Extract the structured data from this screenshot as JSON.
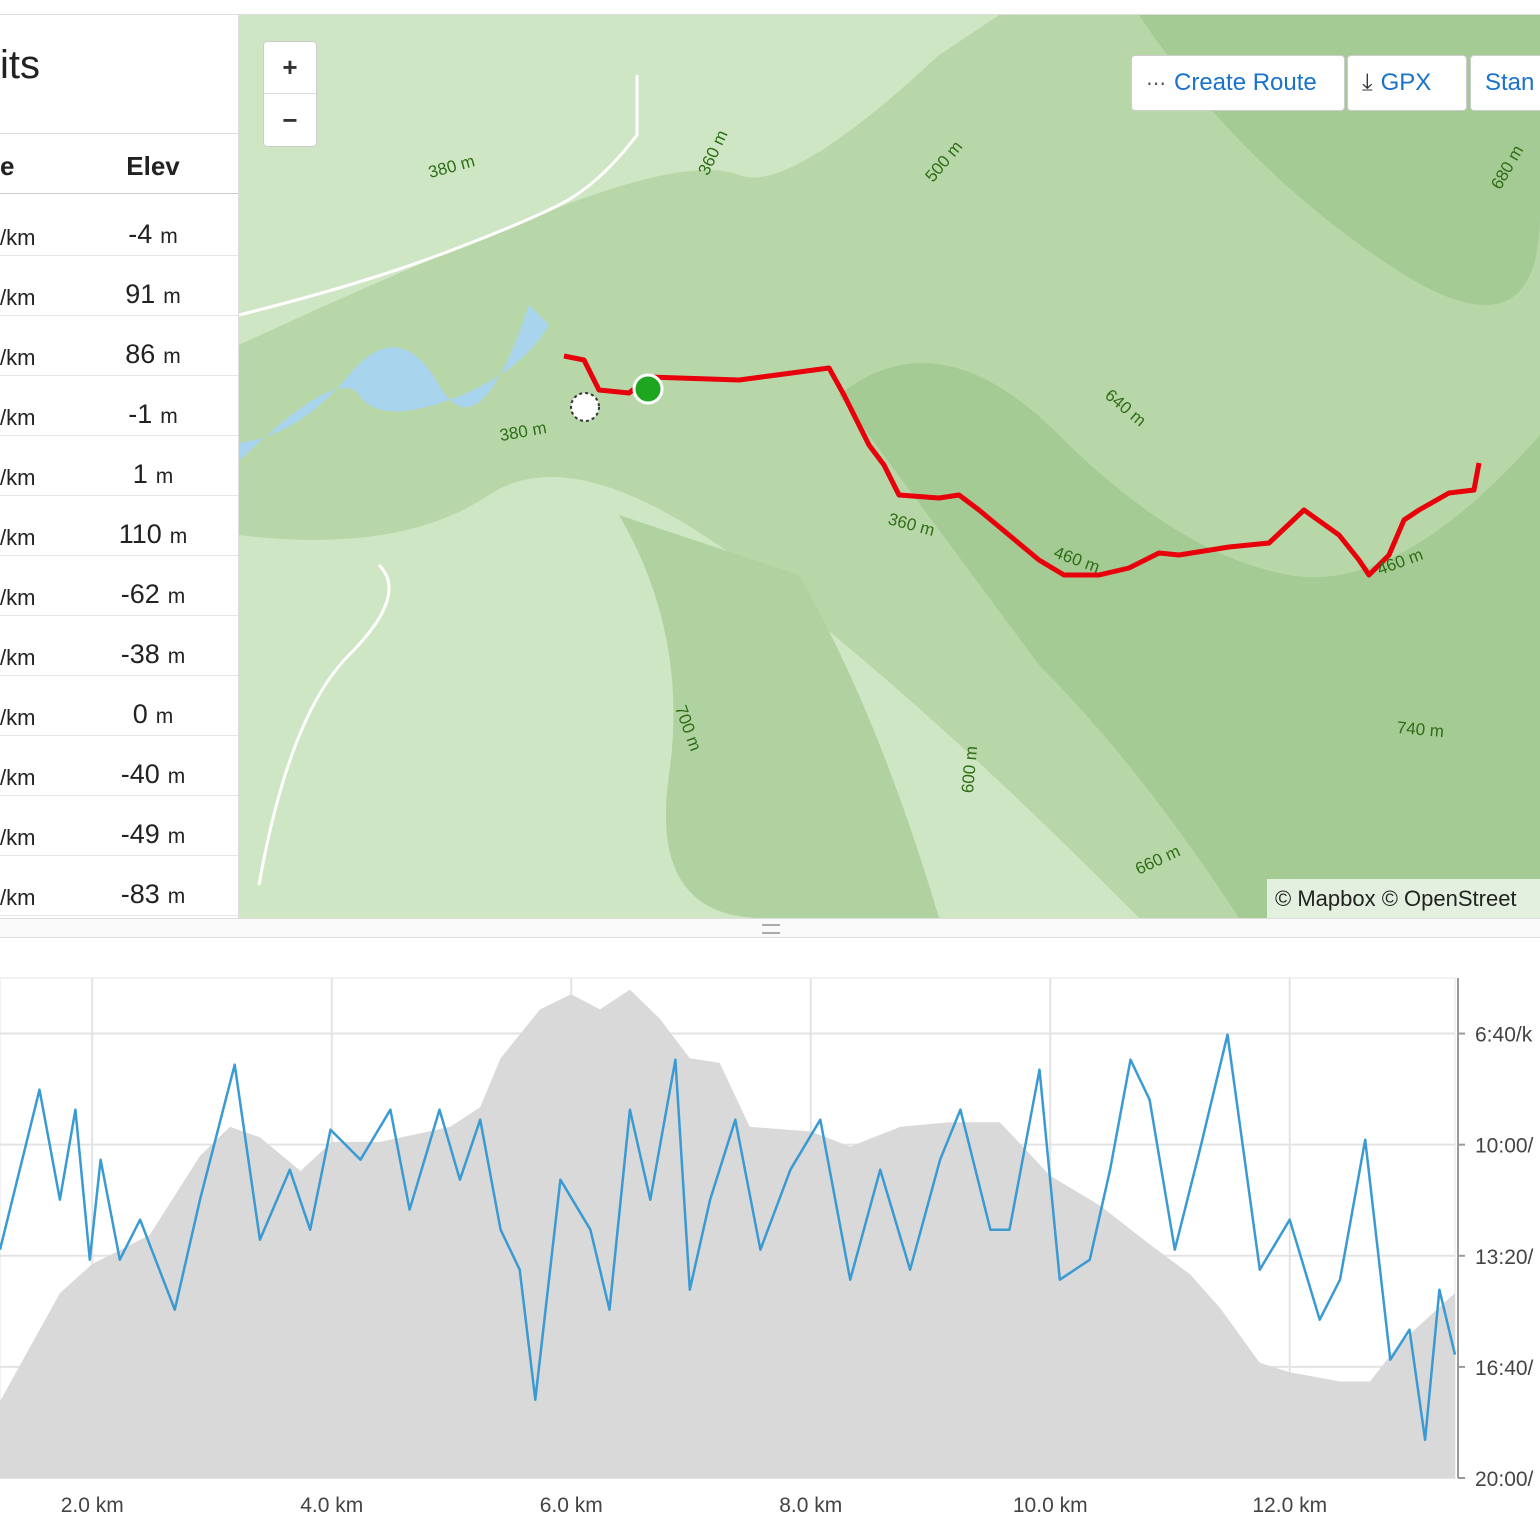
{
  "splits": {
    "title": "its",
    "headers": [
      "e",
      "Elev"
    ],
    "rows": [
      [
        "/km",
        "-4",
        "m"
      ],
      [
        "/km",
        "91",
        "m"
      ],
      [
        "/km",
        "86",
        "m"
      ],
      [
        "/km",
        "-1",
        "m"
      ],
      [
        "/km",
        "1",
        "m"
      ],
      [
        "/km",
        "110",
        "m"
      ],
      [
        "/km",
        "-62",
        "m"
      ],
      [
        "/km",
        "-38",
        "m"
      ],
      [
        "/km",
        "0",
        "m"
      ],
      [
        "/km",
        "-40",
        "m"
      ],
      [
        "/km",
        "-49",
        "m"
      ],
      [
        "/km",
        "-83",
        "m"
      ]
    ]
  },
  "map": {
    "controls": [
      "+",
      "−"
    ],
    "buttons": [
      "Create Route",
      "GPX",
      "Stan"
    ],
    "contour_labels": [
      "380 m",
      "360 m",
      "500 m",
      "680 m",
      "640 m",
      "380 m",
      "360 m",
      "460 m",
      "460 m",
      "700 m",
      "600 m",
      "740 m",
      "660 m"
    ],
    "attribution": "© Mapbox © OpenStreet"
  },
  "chart_data": {
    "type": "line",
    "xlim": [
      1.23,
      13.38
    ],
    "xticks": [
      {
        "value": 2,
        "label": "2.0 km"
      },
      {
        "value": 4,
        "label": "4.0 km"
      },
      {
        "value": 6,
        "label": "6.0 km"
      },
      {
        "value": 8,
        "label": "8.0 km"
      },
      {
        "value": 10,
        "label": "10.0 km"
      },
      {
        "value": 12,
        "label": "12.0 km"
      }
    ],
    "ylim": [
      340,
      770
    ],
    "y2lim": [
      1200,
      300
    ],
    "y2ticks": [
      {
        "value": 400,
        "label": "6:40/k"
      },
      {
        "value": 600,
        "label": "10:00/"
      },
      {
        "value": 800,
        "label": "13:20/"
      },
      {
        "value": 1000,
        "label": "16:40/"
      },
      {
        "value": 1200,
        "label": "20:00/"
      }
    ],
    "grid": true,
    "series": [
      {
        "color": "#d9d9d9",
        "fill": true,
        "x": [
          1.23,
          1.73,
          2.0,
          2.48,
          2.9,
          3.15,
          3.4,
          3.74,
          4.0,
          4.4,
          4.99,
          5.24,
          5.41,
          5.74,
          6.0,
          6.24,
          6.49,
          6.74,
          6.99,
          7.24,
          7.49,
          8.0,
          8.33,
          8.75,
          9.16,
          9.58,
          10.0,
          10.42,
          10.83,
          11.17,
          11.42,
          11.75,
          12.0,
          12.42,
          12.67,
          12.92,
          13.38
        ],
        "values": [
          406,
          499,
          524,
          549,
          617,
          642,
          633,
          604,
          629,
          629,
          642,
          659,
          701,
          743,
          756,
          743,
          760,
          735,
          701,
          697,
          642,
          638,
          625,
          642,
          646,
          646,
          600,
          574,
          541,
          515,
          486,
          439,
          431,
          423,
          423,
          456,
          499
        ]
      },
      {
        "color": "#3a9ad3",
        "axis": "y2",
        "x": [
          1.23,
          1.56,
          1.73,
          1.86,
          1.98,
          2.07,
          2.23,
          2.4,
          2.69,
          2.9,
          3.19,
          3.4,
          3.65,
          3.82,
          3.99,
          4.24,
          4.49,
          4.65,
          4.9,
          5.07,
          5.24,
          5.41,
          5.57,
          5.7,
          5.91,
          6.16,
          6.32,
          6.49,
          6.66,
          6.87,
          6.99,
          7.16,
          7.37,
          7.58,
          7.83,
          8.08,
          8.33,
          8.58,
          8.83,
          9.08,
          9.25,
          9.5,
          9.66,
          9.91,
          10.08,
          10.33,
          10.5,
          10.67,
          10.83,
          11.04,
          11.25,
          11.48,
          11.75,
          12.0,
          12.25,
          12.42,
          12.63,
          12.84,
          13.0,
          13.13,
          13.25,
          13.38
        ],
        "values": [
          789,
          501,
          699,
          537,
          807,
          627,
          807,
          735,
          897,
          699,
          456,
          771,
          645,
          753,
          573,
          627,
          537,
          717,
          537,
          663,
          555,
          753,
          825,
          1059,
          663,
          753,
          897,
          537,
          699,
          447,
          861,
          699,
          555,
          789,
          645,
          555,
          843,
          645,
          825,
          627,
          537,
          753,
          753,
          465,
          843,
          807,
          645,
          447,
          519,
          789,
          609,
          402,
          825,
          735,
          915,
          843,
          591,
          987,
          933,
          1131,
          861,
          978
        ]
      }
    ]
  }
}
